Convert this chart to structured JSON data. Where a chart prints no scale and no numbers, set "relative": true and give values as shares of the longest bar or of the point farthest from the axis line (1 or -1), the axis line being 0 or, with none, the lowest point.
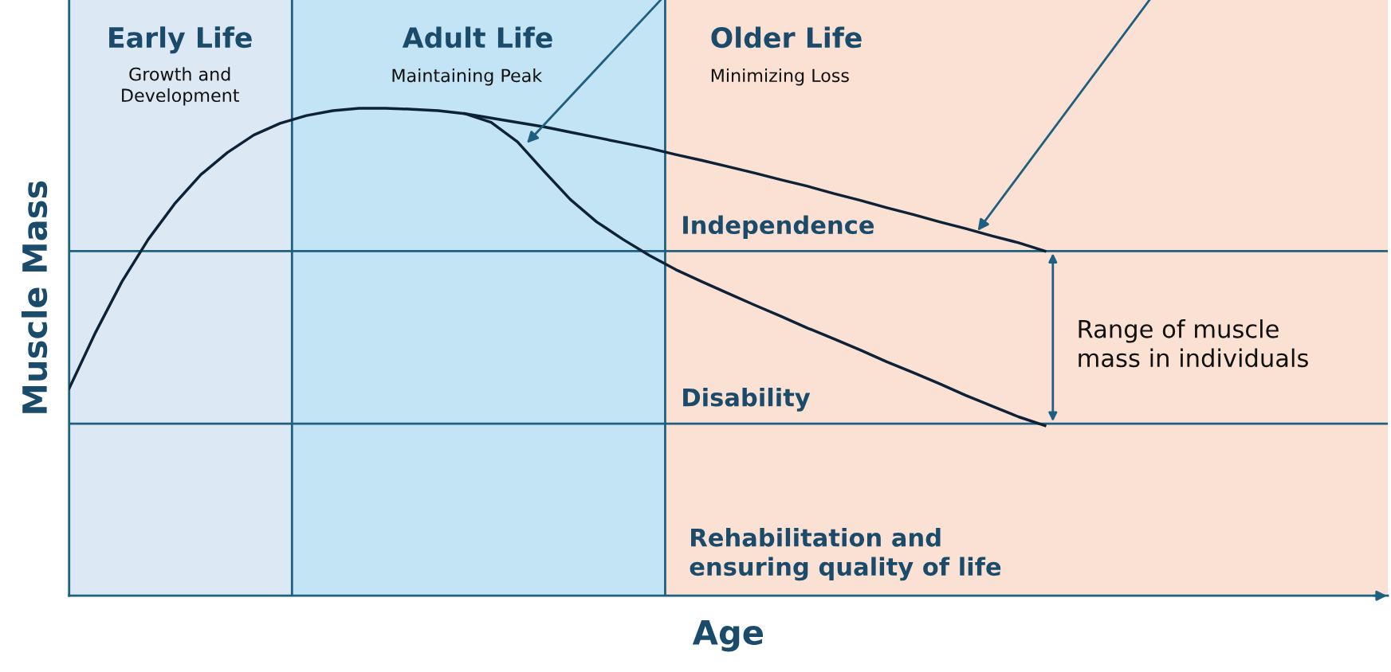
{
  "chart_data": {
    "type": "line",
    "relative": true,
    "xlabel": "Age",
    "ylabel": "Muscle Mass",
    "line_style": "solid",
    "categories": [
      null,
      null,
      null,
      null,
      null,
      null,
      null,
      null,
      null,
      null,
      null,
      null,
      null,
      null,
      null,
      null,
      null,
      null,
      null,
      null,
      null,
      null,
      null,
      null,
      null,
      null,
      null,
      null,
      null,
      null,
      null,
      null,
      null,
      null,
      null,
      null,
      null,
      null,
      null,
      null,
      null,
      null,
      null,
      null,
      null,
      null,
      null,
      null,
      null,
      null,
      null
    ],
    "series": [
      {
        "color": "#0d2236",
        "values": [
          0.425,
          0.54,
          0.644,
          0.731,
          0.804,
          0.864,
          0.909,
          0.945,
          0.969,
          0.985,
          0.995,
          1.0,
          1.0,
          0.998,
          0.995,
          0.989,
          0.98,
          0.971,
          0.962,
          0.951,
          0.94,
          0.929,
          0.918,
          0.905,
          0.893,
          0.88,
          0.867,
          0.853,
          0.84,
          0.825,
          0.811,
          0.796,
          0.782,
          0.767,
          0.753,
          0.738,
          0.724,
          0.707,
          null,
          null,
          null,
          null,
          null,
          null,
          null,
          null,
          null,
          null,
          null,
          null,
          null
        ]
      },
      {
        "color": "#0d2236",
        "values": [
          null,
          null,
          null,
          null,
          null,
          null,
          null,
          null,
          null,
          null,
          null,
          null,
          null,
          null,
          null,
          0.989,
          0.971,
          0.931,
          0.871,
          0.813,
          0.767,
          0.731,
          0.698,
          0.669,
          0.644,
          0.62,
          0.596,
          0.573,
          0.549,
          0.527,
          0.504,
          0.48,
          0.458,
          0.435,
          0.411,
          0.389,
          0.367,
          0.349,
          null,
          null,
          null,
          null,
          null,
          null,
          null,
          null,
          null,
          null,
          null,
          null,
          null
        ]
      }
    ],
    "ref_lines": [
      {
        "axis": "y",
        "value": 0.707,
        "label": "Independence",
        "color": "#1f5f80"
      },
      {
        "axis": "y",
        "value": 0.353,
        "label": "Disability",
        "color": "#1f5f80"
      }
    ],
    "annotations": [
      "Early Life",
      "Adult Life",
      "Older Life",
      "Growth and\nDevelopment",
      "Maintaining Peak",
      "Minimizing Loss",
      "Range of muscle\nmass in individuals",
      "Rehabilitation and\nensuring quality of life"
    ]
  }
}
